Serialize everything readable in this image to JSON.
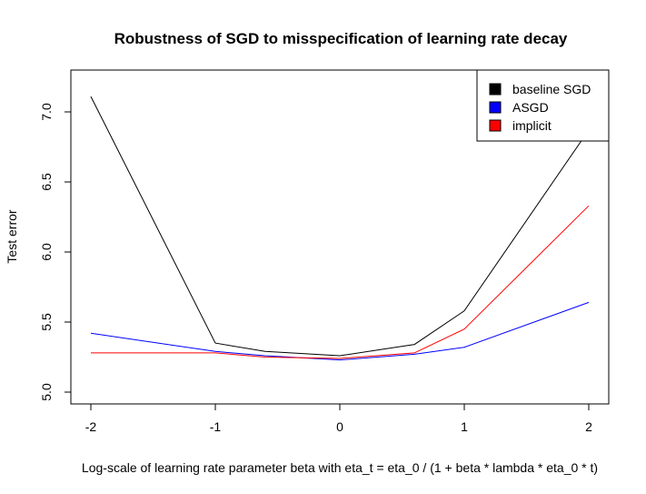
{
  "chart_data": {
    "type": "line",
    "title": "Robustness of SGD to misspecification of learning rate decay",
    "xlabel": "Log-scale of learning rate parameter beta with eta_t = eta_0 / (1 + beta * lambda * eta_0 * t)",
    "ylabel": "Test error",
    "xlim": [
      -2,
      2
    ],
    "ylim": [
      5.0,
      7.25
    ],
    "x_ticks": [
      -2,
      -1,
      0,
      1,
      2
    ],
    "x_tick_labels": [
      "-2",
      "-1",
      "0",
      "1",
      "2"
    ],
    "y_ticks": [
      5.0,
      5.5,
      6.0,
      6.5,
      7.0
    ],
    "y_tick_labels": [
      "5.0",
      "5.5",
      "6.0",
      "6.5",
      "7.0"
    ],
    "legend_position": "top-right",
    "grid": false,
    "series": [
      {
        "name": "baseline SGD",
        "color": "#000000",
        "x": [
          -2,
          -1,
          -0.6,
          0,
          0.6,
          1,
          2
        ],
        "y": [
          7.11,
          5.35,
          5.29,
          5.26,
          5.34,
          5.58,
          6.87
        ]
      },
      {
        "name": "ASGD",
        "color": "#0000ff",
        "x": [
          -2,
          -1,
          -0.6,
          0,
          0.6,
          1,
          2
        ],
        "y": [
          5.42,
          5.29,
          5.26,
          5.23,
          5.27,
          5.32,
          5.64
        ]
      },
      {
        "name": "implicit",
        "color": "#ff0000",
        "x": [
          -2,
          -1,
          -0.6,
          0,
          0.6,
          1,
          2
        ],
        "y": [
          5.28,
          5.28,
          5.25,
          5.24,
          5.28,
          5.45,
          6.33
        ]
      }
    ]
  }
}
